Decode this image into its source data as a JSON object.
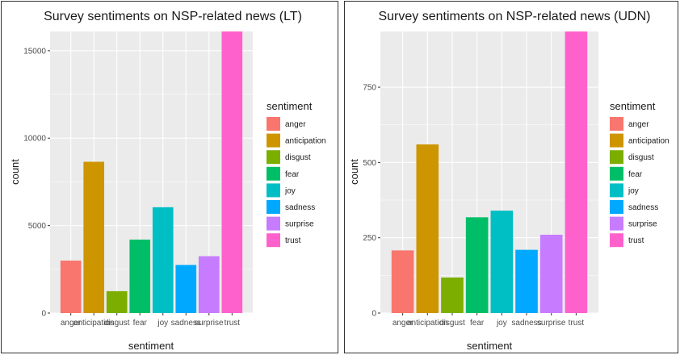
{
  "sentiment_colors": [
    "#F8766D",
    "#CD9600",
    "#7CAE00",
    "#00BE67",
    "#00BFC4",
    "#00A9FF",
    "#C77CFF",
    "#FF61CC"
  ],
  "chart_data": [
    {
      "type": "bar",
      "title": "Survey sentiments on NSP-related news (LT)",
      "xlabel": "sentiment",
      "ylabel": "count",
      "categories": [
        "anger",
        "anticipation",
        "disgust",
        "fear",
        "joy",
        "sadness",
        "surprise",
        "trust"
      ],
      "values": [
        3000,
        8650,
        1250,
        4200,
        6050,
        2750,
        3250,
        16100
      ],
      "ylim": [
        0,
        16100
      ],
      "yticks": [
        0,
        5000,
        10000,
        15000
      ],
      "ytick_labels": [
        "0",
        "5000",
        "10000",
        "15000"
      ],
      "legend_title": "sentiment",
      "legend_position": "right",
      "grid": true
    },
    {
      "type": "bar",
      "title": "Survey sentiments on NSP-related news (UDN)",
      "xlabel": "sentiment",
      "ylabel": "count",
      "categories": [
        "anger",
        "anticipation",
        "disgust",
        "fear",
        "joy",
        "sadness",
        "surprise",
        "trust"
      ],
      "values": [
        208,
        560,
        118,
        318,
        340,
        210,
        260,
        935
      ],
      "ylim": [
        0,
        935
      ],
      "yticks": [
        0,
        250,
        500,
        750
      ],
      "ytick_labels": [
        "0",
        "250",
        "500",
        "750"
      ],
      "legend_title": "sentiment",
      "legend_position": "right",
      "grid": true
    }
  ]
}
